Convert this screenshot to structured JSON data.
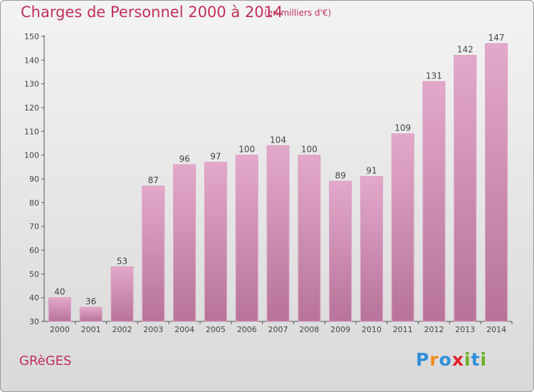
{
  "header": {
    "title": "Charges de Personnel 2000 à 2014",
    "units": "(en milliers d'€)"
  },
  "footer": {
    "town": "GRèGES",
    "logo": {
      "text": "Proxiti",
      "letters": [
        {
          "ch": "P",
          "color": "#2f8fd8"
        },
        {
          "ch": "r",
          "color": "#f08a1c"
        },
        {
          "ch": "o",
          "color": "#2f8fd8"
        },
        {
          "ch": "x",
          "color": "#e0232b"
        },
        {
          "ch": "i",
          "color": "#6ab023"
        },
        {
          "ch": "t",
          "color": "#2f8fd8"
        },
        {
          "ch": "i",
          "color": "#6ab023"
        }
      ]
    }
  },
  "colors": {
    "bar_top": "#e3a8cb",
    "bar_bottom": "#b77399",
    "bar_edge": "#d9a0c2"
  },
  "chart_data": {
    "type": "bar",
    "categories": [
      "2000",
      "2001",
      "2002",
      "2003",
      "2004",
      "2005",
      "2006",
      "2007",
      "2008",
      "2009",
      "2010",
      "2011",
      "2012",
      "2013",
      "2014"
    ],
    "values": [
      40,
      36,
      53,
      87,
      96,
      97,
      100,
      104,
      100,
      89,
      91,
      109,
      131,
      142,
      147
    ],
    "ylim": [
      30,
      150
    ],
    "yticks": [
      30,
      40,
      50,
      60,
      70,
      80,
      90,
      100,
      110,
      120,
      130,
      140,
      150
    ],
    "grid": false,
    "legend": "none"
  }
}
